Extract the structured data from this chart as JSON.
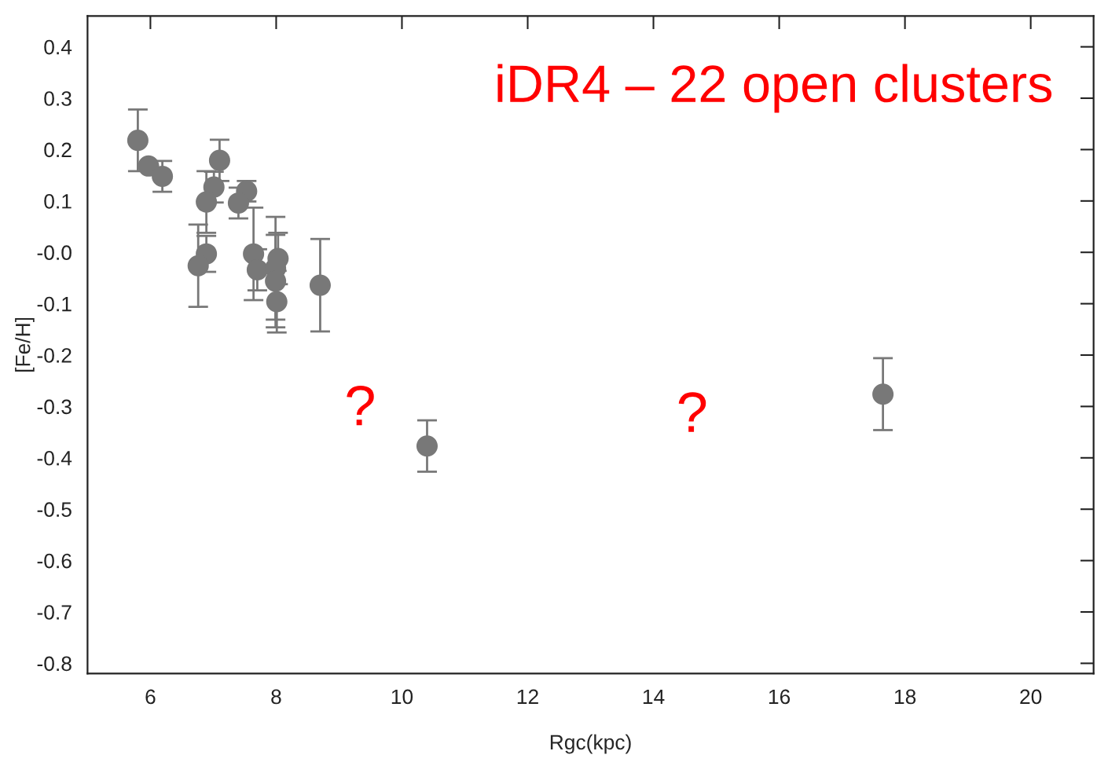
{
  "chart_data": {
    "type": "scatter",
    "xlabel": "Rgc(kpc)",
    "ylabel": "[Fe/H]",
    "x": [
      5.8,
      5.97,
      6.19,
      7.1,
      7.01,
      6.89,
      7.53,
      7.4,
      6.89,
      6.76,
      7.64,
      7.7,
      8.03,
      7.99,
      7.99,
      8.01,
      8.7,
      10.4,
      17.65
    ],
    "series": [
      {
        "color": "#787878",
        "values": [
          0.218,
          0.168,
          0.148,
          0.179,
          0.127,
          0.098,
          0.119,
          0.096,
          -0.003,
          -0.026,
          -0.003,
          -0.034,
          -0.012,
          -0.031,
          -0.056,
          -0.096,
          -0.064,
          -0.377,
          -0.276
        ],
        "errors": [
          0.06,
          null,
          0.03,
          0.04,
          0.03,
          0.06,
          0.02,
          0.03,
          0.035,
          0.08,
          0.09,
          0.04,
          0.05,
          0.1,
          0.09,
          0.06,
          0.09,
          0.05,
          0.07
        ]
      }
    ],
    "marker": "circle",
    "xlim": [
      5,
      21
    ],
    "xticks": [
      6,
      8,
      10,
      12,
      14,
      16,
      18,
      20
    ],
    "ylim": [
      -0.82,
      0.46
    ],
    "yticks": [
      0.4,
      0.3,
      0.2,
      0.1,
      {
        "value": 0,
        "label": "-0.0"
      },
      -0.1,
      -0.2,
      -0.3,
      -0.4,
      -0.5,
      -0.6,
      -0.7,
      -0.8
    ],
    "grid": false,
    "annotations": [
      "iDR4 – 22 open clusters",
      "?",
      "?"
    ]
  }
}
